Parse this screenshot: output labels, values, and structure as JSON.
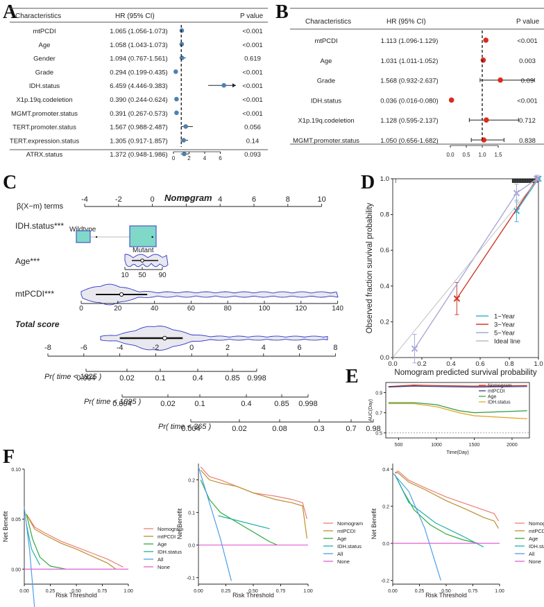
{
  "panels": {
    "A": "A",
    "B": "B",
    "C": "C",
    "D": "D",
    "E": "E",
    "F": "F"
  },
  "forest_headers": {
    "characteristics": "Characteristics",
    "hr": "HR (95% CI)",
    "pvalue": "P value"
  },
  "nomogram_text": {
    "title": "Nomogram",
    "beta_label": "β(X−m) terms",
    "idh_label": "IDH.status***",
    "wildtype": "Wildtype",
    "mutant": "Mutant",
    "age_label": "Age***",
    "mtpcdi_label": "mtPCDI***",
    "total_label": "Total score",
    "pr1825": "Pr( time < 1825 )",
    "pr1095": "Pr( time < 1095 )",
    "pr365": "Pr( time < 365 )"
  },
  "chart_data": [
    {
      "panel": "A",
      "type": "forest",
      "xlim": [
        0,
        8
      ],
      "ticks": [
        0,
        2,
        4,
        6
      ],
      "ref_line": 1,
      "rows": [
        {
          "name": "mtPCDI",
          "hr_text": "1.065 (1.056-1.073)",
          "p": "<0.001",
          "hr": 1.065,
          "lo": 1.056,
          "hi": 1.073
        },
        {
          "name": "Age",
          "hr_text": "1.058 (1.043-1.073)",
          "p": "<0.001",
          "hr": 1.058,
          "lo": 1.043,
          "hi": 1.073
        },
        {
          "name": "Gender",
          "hr_text": "1.094 (0.767-1.561)",
          "p": "0.619",
          "hr": 1.094,
          "lo": 0.767,
          "hi": 1.561
        },
        {
          "name": "Grade",
          "hr_text": "0.294 (0.199-0.435)",
          "p": "<0.001",
          "hr": 0.294,
          "lo": 0.199,
          "hi": 0.435
        },
        {
          "name": "IDH.status",
          "hr_text": "6.459 (4.446-9.383)",
          "p": "<0.001",
          "hr": 6.459,
          "lo": 4.446,
          "hi": 9.383
        },
        {
          "name": "X1p.19q.codeletion",
          "hr_text": "0.390 (0.244-0.624)",
          "p": "<0.001",
          "hr": 0.39,
          "lo": 0.244,
          "hi": 0.624
        },
        {
          "name": "MGMT.promoter.status",
          "hr_text": "0.391 (0.267-0.573)",
          "p": "<0.001",
          "hr": 0.391,
          "lo": 0.267,
          "hi": 0.573
        },
        {
          "name": "TERT.promoter.status",
          "hr_text": "1.567 (0.988-2.487)",
          "p": "0.056",
          "hr": 1.567,
          "lo": 0.988,
          "hi": 2.487
        },
        {
          "name": "TERT.expression.status",
          "hr_text": "1.305 (0.917-1.857)",
          "p": "0.14",
          "hr": 1.305,
          "lo": 0.917,
          "hi": 1.857
        },
        {
          "name": "ATRX.status",
          "hr_text": "1.372 (0.948-1.986)",
          "p": "0.093",
          "hr": 1.372,
          "lo": 0.948,
          "hi": 1.986
        }
      ]
    },
    {
      "panel": "B",
      "type": "forest",
      "xlim": [
        0,
        2.2
      ],
      "ticks": [
        0.0,
        0.5,
        1.0,
        1.5
      ],
      "tick_labels": [
        "0.0",
        "0.5",
        "1.0",
        "1.5"
      ],
      "ref_line": 1,
      "rows": [
        {
          "name": "mtPCDI",
          "hr_text": "1.113 (1.096-1.129)",
          "p": "<0.001",
          "hr": 1.113,
          "lo": 1.096,
          "hi": 1.129
        },
        {
          "name": "Age",
          "hr_text": "1.031 (1.011-1.052)",
          "p": "0.003",
          "hr": 1.031,
          "lo": 1.011,
          "hi": 1.052
        },
        {
          "name": "Grade",
          "hr_text": "1.568 (0.932-2.637)",
          "p": "0.09",
          "hr": 1.568,
          "lo": 0.932,
          "hi": 2.637
        },
        {
          "name": "IDH.status",
          "hr_text": "0.036 (0.016-0.080)",
          "p": "<0.001",
          "hr": 0.036,
          "lo": 0.016,
          "hi": 0.08
        },
        {
          "name": "X1p.19q.codeletion",
          "hr_text": "1.128 (0.595-2.137)",
          "p": "0.712",
          "hr": 1.128,
          "lo": 0.595,
          "hi": 2.137
        },
        {
          "name": "MGMT.promoter.status",
          "hr_text": "1.050 (0.656-1.682)",
          "p": "0.838",
          "hr": 1.05,
          "lo": 0.656,
          "hi": 1.682
        }
      ]
    },
    {
      "panel": "C",
      "type": "nomogram",
      "axes": [
        {
          "name": "beta",
          "min": -4,
          "max": 10,
          "ticks": [
            -4,
            -2,
            0,
            2,
            4,
            6,
            8,
            10
          ]
        },
        {
          "name": "age",
          "ticks": [
            10,
            50,
            90
          ]
        },
        {
          "name": "mtpcdi",
          "ticks": [
            0,
            20,
            40,
            60,
            80,
            100,
            120,
            140
          ]
        },
        {
          "name": "total",
          "min": -8,
          "max": 8,
          "ticks": [
            -8,
            -6,
            -4,
            -2,
            0,
            2,
            4,
            6,
            8
          ]
        },
        {
          "name": "pr1825",
          "ticks": [
            "0.004",
            "0.02",
            "0.1",
            "0.4",
            "0.85",
            "0.998"
          ]
        },
        {
          "name": "pr1095",
          "ticks": [
            "0.004",
            "0.02",
            "0.1",
            "0.4",
            "0.85",
            "0.998"
          ]
        },
        {
          "name": "pr365",
          "ticks": [
            "0.004",
            "0.02",
            "0.08",
            "0.3",
            "0.7",
            "0.98"
          ]
        }
      ],
      "points": {
        "idh_wildtype_beta": -3.3,
        "idh_mutant_beta": 0,
        "age_median": 45,
        "mtpcdi_median": 22,
        "total_median": -1.5
      }
    },
    {
      "panel": "D",
      "type": "line",
      "xlabel": "Nomogram predicted survival probability",
      "ylabel": "Observed fraction survival probability",
      "xlim": [
        0,
        1
      ],
      "ylim": [
        0,
        1
      ],
      "xticks": [
        "0.0",
        "0.2",
        "0.4",
        "0.6",
        "0.8",
        "1.0"
      ],
      "yticks": [
        "0.0",
        "0.2",
        "0.4",
        "0.6",
        "0.8",
        "1.0"
      ],
      "series": [
        {
          "name": "1−Year",
          "color": "#3fb1d6",
          "x": [
            0.85,
            1.0
          ],
          "y": [
            0.82,
            1.0
          ],
          "err": [
            0.06,
            0.0
          ]
        },
        {
          "name": "3−Year",
          "color": "#d03a2a",
          "x": [
            0.44,
            0.99
          ],
          "y": [
            0.33,
            1.0
          ],
          "err": [
            0.09,
            0.01
          ]
        },
        {
          "name": "5−Year",
          "color": "#a9a9d9",
          "x": [
            0.15,
            0.85,
            0.99
          ],
          "y": [
            0.05,
            0.92,
            1.0
          ],
          "err": [
            0.08,
            0.05,
            0.02
          ]
        },
        {
          "name": "Ideal line",
          "color": "#bbbbbb",
          "x": [
            0,
            1
          ],
          "y": [
            0,
            1
          ]
        }
      ]
    },
    {
      "panel": "E",
      "type": "line",
      "xlabel": "Time(Day)",
      "ylabel": "AUC(Day)",
      "xlim": [
        330,
        2230
      ],
      "ylim": [
        0.45,
        1.0
      ],
      "xticks": [
        500,
        1000,
        1500,
        2000
      ],
      "yticks": [
        "0.5",
        "0.7",
        "0.9"
      ],
      "ref_line": 0.5,
      "series": [
        {
          "name": "Nomogram",
          "color": "#d03a2a",
          "x": [
            365,
            700,
            1000,
            1500,
            2200
          ],
          "y": [
            0.96,
            0.975,
            0.97,
            0.965,
            0.97
          ]
        },
        {
          "name": "mtPCDI",
          "color": "#2b2a7a",
          "x": [
            365,
            700,
            1000,
            1500,
            2200
          ],
          "y": [
            0.955,
            0.965,
            0.96,
            0.955,
            0.96
          ]
        },
        {
          "name": "Age",
          "color": "#2e9a3e",
          "x": [
            365,
            700,
            1000,
            1300,
            1500,
            2200
          ],
          "y": [
            0.8,
            0.8,
            0.78,
            0.72,
            0.7,
            0.72
          ]
        },
        {
          "name": "IDH.status",
          "color": "#e0a21a",
          "x": [
            365,
            700,
            1000,
            1300,
            1500,
            2200
          ],
          "y": [
            0.79,
            0.79,
            0.76,
            0.7,
            0.67,
            0.64
          ]
        }
      ]
    },
    {
      "panel": "F1",
      "type": "line",
      "xlabel": "Risk Threshold",
      "ylabel": "Net Benefit",
      "xlim": [
        0,
        1
      ],
      "ylim": [
        -0.015,
        0.1
      ],
      "xticks": [
        "0.00",
        "0.25",
        "0.50",
        "0.75",
        "1.00"
      ],
      "yticks": [
        "0.00",
        "0.05",
        "0.10"
      ],
      "series": [
        {
          "name": "Nomogram",
          "color": "#f07c72",
          "x": [
            0.02,
            0.1,
            0.2,
            0.35,
            0.5,
            0.65,
            0.8,
            0.95
          ],
          "y": [
            0.055,
            0.042,
            0.036,
            0.028,
            0.022,
            0.016,
            0.01,
            0.002
          ]
        },
        {
          "name": "mtPCDI",
          "color": "#b8902a",
          "x": [
            0.02,
            0.1,
            0.2,
            0.35,
            0.5,
            0.65,
            0.8,
            0.88
          ],
          "y": [
            0.055,
            0.04,
            0.034,
            0.026,
            0.02,
            0.013,
            0.006,
            0.0
          ]
        },
        {
          "name": "Age",
          "color": "#2eaa3e",
          "x": [
            0.02,
            0.08,
            0.15,
            0.25,
            0.4
          ],
          "y": [
            0.055,
            0.03,
            0.012,
            0.003,
            0.0
          ]
        },
        {
          "name": "IDH.status",
          "color": "#20b0a6",
          "x": [
            0.02,
            0.07,
            0.15
          ],
          "y": [
            0.045,
            0.02,
            0.004
          ]
        },
        {
          "name": "All",
          "color": "#4b9fe8",
          "x": [
            0.0,
            0.05,
            0.1
          ],
          "y": [
            0.062,
            0.02,
            -0.04
          ]
        },
        {
          "name": "None",
          "color": "#e25fd6",
          "x": [
            0.0,
            1.0
          ],
          "y": [
            0.0,
            0.0
          ]
        }
      ]
    },
    {
      "panel": "F2",
      "type": "line",
      "xlabel": "Risk Threshold",
      "ylabel": "Net Benefit",
      "xlim": [
        0,
        1
      ],
      "ylim": [
        -0.12,
        0.25
      ],
      "xticks": [
        "0.00",
        "0.25",
        "0.50",
        "0.75",
        "1.00"
      ],
      "yticks": [
        "-0.1",
        "0.0",
        "0.1",
        "0.2"
      ],
      "series": [
        {
          "name": "Nomogram",
          "color": "#f07c72",
          "x": [
            0.02,
            0.1,
            0.2,
            0.35,
            0.5,
            0.7,
            0.85,
            0.95,
            0.99
          ],
          "y": [
            0.24,
            0.21,
            0.2,
            0.18,
            0.16,
            0.15,
            0.14,
            0.13,
            0.08
          ]
        },
        {
          "name": "mtPCDI",
          "color": "#b8902a",
          "x": [
            0.02,
            0.1,
            0.2,
            0.35,
            0.5,
            0.7,
            0.85,
            0.95,
            0.99
          ],
          "y": [
            0.23,
            0.2,
            0.19,
            0.18,
            0.16,
            0.14,
            0.13,
            0.12,
            0.02
          ]
        },
        {
          "name": "Age",
          "color": "#2eaa3e",
          "x": [
            0.02,
            0.1,
            0.2,
            0.35,
            0.5,
            0.65,
            0.72
          ],
          "y": [
            0.2,
            0.14,
            0.1,
            0.07,
            0.04,
            0.01,
            0.0
          ]
        },
        {
          "name": "IDH.status",
          "color": "#20b0a6",
          "x": [
            0.18,
            0.65
          ],
          "y": [
            0.09,
            0.05
          ]
        },
        {
          "name": "All",
          "color": "#4b9fe8",
          "x": [
            0.0,
            0.1,
            0.2,
            0.3
          ],
          "y": [
            0.24,
            0.13,
            0.02,
            -0.11
          ]
        },
        {
          "name": "None",
          "color": "#e25fd6",
          "x": [
            0.0,
            1.0
          ],
          "y": [
            0.0,
            0.0
          ]
        }
      ]
    },
    {
      "panel": "F3",
      "type": "line",
      "xlabel": "Risk Threshold",
      "ylabel": "Net Benefit",
      "xlim": [
        0,
        1
      ],
      "ylim": [
        -0.22,
        0.43
      ],
      "xticks": [
        "0.00",
        "0.25",
        "0.50",
        "0.75",
        "1.00"
      ],
      "yticks": [
        "-0.2",
        "0.0",
        "0.2",
        "0.4"
      ],
      "series": [
        {
          "name": "Nomogram",
          "color": "#f07c72",
          "x": [
            0.02,
            0.05,
            0.15,
            0.3,
            0.5,
            0.7,
            0.85,
            0.95,
            0.99
          ],
          "y": [
            0.38,
            0.39,
            0.34,
            0.3,
            0.25,
            0.21,
            0.18,
            0.16,
            0.12
          ]
        },
        {
          "name": "mtPCDI",
          "color": "#b8902a",
          "x": [
            0.02,
            0.05,
            0.15,
            0.3,
            0.5,
            0.7,
            0.85,
            0.95,
            0.99
          ],
          "y": [
            0.38,
            0.38,
            0.33,
            0.29,
            0.23,
            0.18,
            0.14,
            0.12,
            0.08
          ]
        },
        {
          "name": "Age",
          "color": "#2eaa3e",
          "x": [
            0.02,
            0.1,
            0.2,
            0.35,
            0.5,
            0.65,
            0.8
          ],
          "y": [
            0.37,
            0.28,
            0.18,
            0.1,
            0.05,
            0.02,
            0.0
          ]
        },
        {
          "name": "IDH.status",
          "color": "#20b0a6",
          "x": [
            0.02,
            0.15,
            0.4,
            0.65,
            0.85
          ],
          "y": [
            0.37,
            0.22,
            0.11,
            0.04,
            -0.02
          ]
        },
        {
          "name": "All",
          "color": "#4b9fe8",
          "x": [
            0.0,
            0.15,
            0.3,
            0.45
          ],
          "y": [
            0.38,
            0.28,
            0.08,
            -0.2
          ]
        },
        {
          "name": "None",
          "color": "#e25fd6",
          "x": [
            0.0,
            1.0
          ],
          "y": [
            0.0,
            0.0
          ]
        }
      ]
    }
  ]
}
